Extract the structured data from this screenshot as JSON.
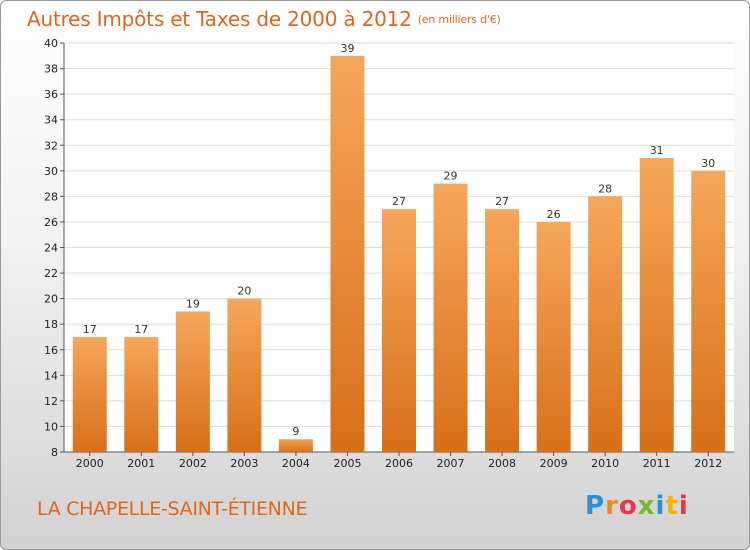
{
  "title": "Autres Impôts et Taxes de 2000 à 2012",
  "unit_label": "(en milliers d'€)",
  "commune": "LA CHAPELLE-SAINT-ÉTIENNE",
  "logo": {
    "letters": [
      "P",
      "r",
      "o",
      "x",
      "i",
      "t",
      "i"
    ]
  },
  "colors": {
    "bar_top": "#f5a75a",
    "bar_bottom": "#d86f1a",
    "title": "#e0651c",
    "grid": "#dcdcdc"
  },
  "chart_data": {
    "type": "bar",
    "title": "Autres Impôts et Taxes de 2000 à 2012",
    "ylabel": "",
    "xlabel": "",
    "categories": [
      "2000",
      "2001",
      "2002",
      "2003",
      "2004",
      "2005",
      "2006",
      "2007",
      "2008",
      "2009",
      "2010",
      "2011",
      "2012"
    ],
    "values": [
      17,
      17,
      19,
      20,
      9,
      39,
      27,
      29,
      27,
      26,
      28,
      31,
      30
    ],
    "ylim": [
      8,
      40
    ],
    "yticks": [
      8,
      10,
      12,
      14,
      16,
      18,
      20,
      22,
      24,
      26,
      28,
      30,
      32,
      34,
      36,
      38,
      40
    ],
    "grid": true
  }
}
